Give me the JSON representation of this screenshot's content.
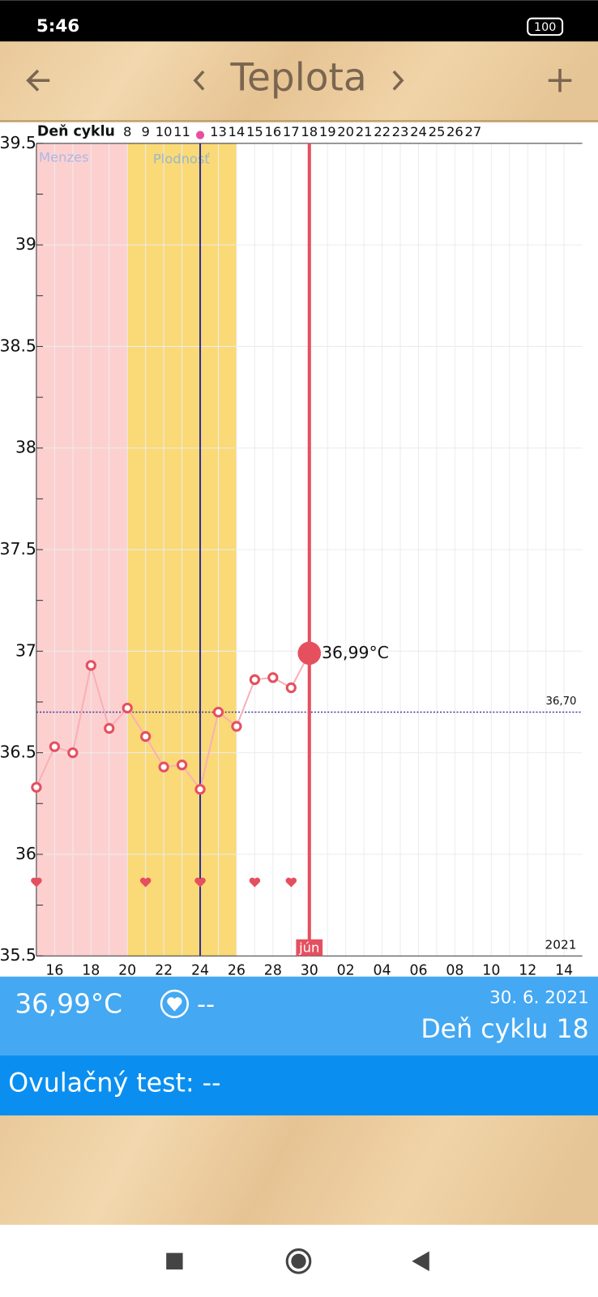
{
  "status_bar": {
    "time": "5:46",
    "battery": "100"
  },
  "header": {
    "title": "Teplota"
  },
  "chart_data": {
    "type": "line",
    "cycle_label": "Deň cyklu",
    "cycle_days": [
      null,
      null,
      null,
      null,
      null,
      8,
      9,
      10,
      11,
      null,
      13,
      14,
      15,
      16,
      17,
      18,
      19,
      20,
      21,
      22,
      23,
      24,
      25,
      26,
      27,
      null,
      null,
      null,
      null,
      null
    ],
    "categories": [
      null,
      "16",
      null,
      "18",
      null,
      "20",
      null,
      "22",
      null,
      "24",
      null,
      "26",
      null,
      "28",
      null,
      "30",
      null,
      "02",
      null,
      "04",
      null,
      "06",
      null,
      "08",
      null,
      "10",
      null,
      "12",
      null,
      "14"
    ],
    "series": [
      {
        "name": "Teplota",
        "color": "#e5505f",
        "values": [
          36.33,
          36.53,
          36.5,
          36.93,
          36.62,
          36.72,
          36.58,
          36.43,
          36.44,
          36.32,
          36.7,
          36.63,
          36.86,
          36.87,
          36.82,
          36.99,
          null,
          null,
          null,
          null,
          null,
          null,
          null,
          null,
          null,
          null,
          null,
          null,
          null,
          null
        ],
        "value_labels": [
          null,
          null,
          null,
          null,
          null,
          null,
          null,
          null,
          null,
          null,
          null,
          null,
          null,
          null,
          null,
          "36,99°C",
          null,
          null,
          null,
          null,
          null,
          null,
          null,
          null,
          null,
          null,
          null,
          null,
          null,
          null
        ]
      }
    ],
    "ylim": [
      35.5,
      39.5
    ],
    "yticks": [
      35.5,
      36,
      36.5,
      37,
      37.5,
      38,
      38.5,
      39,
      39.5
    ],
    "grid": true,
    "coverline": {
      "value": 36.7,
      "label": "36,70"
    },
    "phase_labels": [
      "Menzes",
      "Plodnosť"
    ],
    "month_label": "jún",
    "year_label": "2021"
  },
  "info": {
    "temperature": "36,99°C",
    "intercourse": "--",
    "date": "30. 6. 2021",
    "cycle_day": "Deň cyklu 18",
    "ovulation_test": "Ovulačný test: --"
  }
}
